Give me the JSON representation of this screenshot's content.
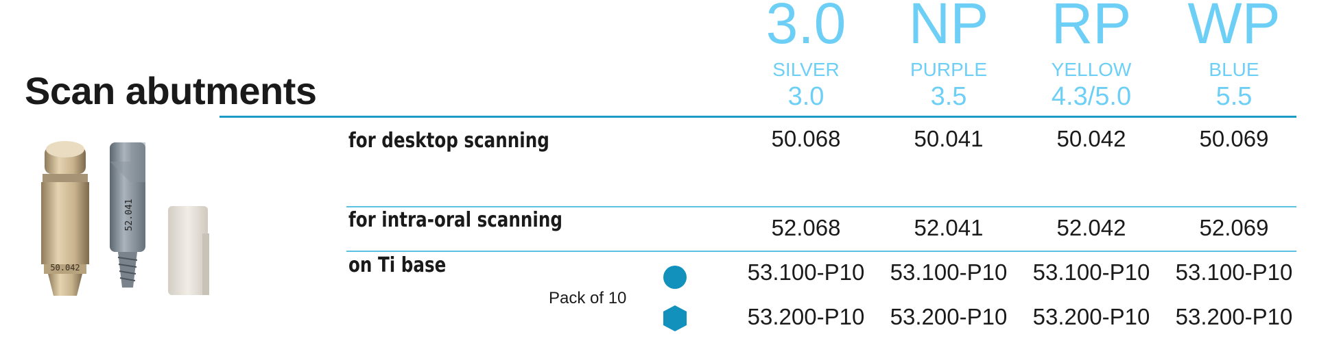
{
  "title": "Scan abutments",
  "columns": [
    {
      "code": "3.0",
      "color": "SILVER",
      "diameter": "3.0"
    },
    {
      "code": "NP",
      "color": "PURPLE",
      "diameter": "3.5"
    },
    {
      "code": "RP",
      "color": "YELLOW",
      "diameter": "4.3/5.0"
    },
    {
      "code": "WP",
      "color": "BLUE",
      "diameter": "5.5"
    }
  ],
  "rows": {
    "desktop": {
      "label": "for desktop scanning",
      "values": [
        "50.068",
        "50.041",
        "50.042",
        "50.069"
      ]
    },
    "intraoral": {
      "label": "for intra-oral scanning",
      "values": [
        "52.068",
        "52.041",
        "52.042",
        "52.069"
      ]
    },
    "tibase": {
      "label": "on Ti base",
      "pack_label": "Pack of 10",
      "round_values": [
        "53.100-P10",
        "53.100-P10",
        "53.100-P10",
        "53.100-P10"
      ],
      "hex_values": [
        "53.200-P10",
        "53.200-P10",
        "53.200-P10",
        "53.200-P10"
      ]
    }
  },
  "product_labels": {
    "abutment": "50.042",
    "post": "52.041"
  },
  "icons": {
    "round": "round-connection-icon",
    "hex": "hexagon-connection-icon"
  },
  "colors": {
    "accent": "#6ecff6",
    "rule": "#1d9ac6",
    "marker": "#1391bd"
  }
}
